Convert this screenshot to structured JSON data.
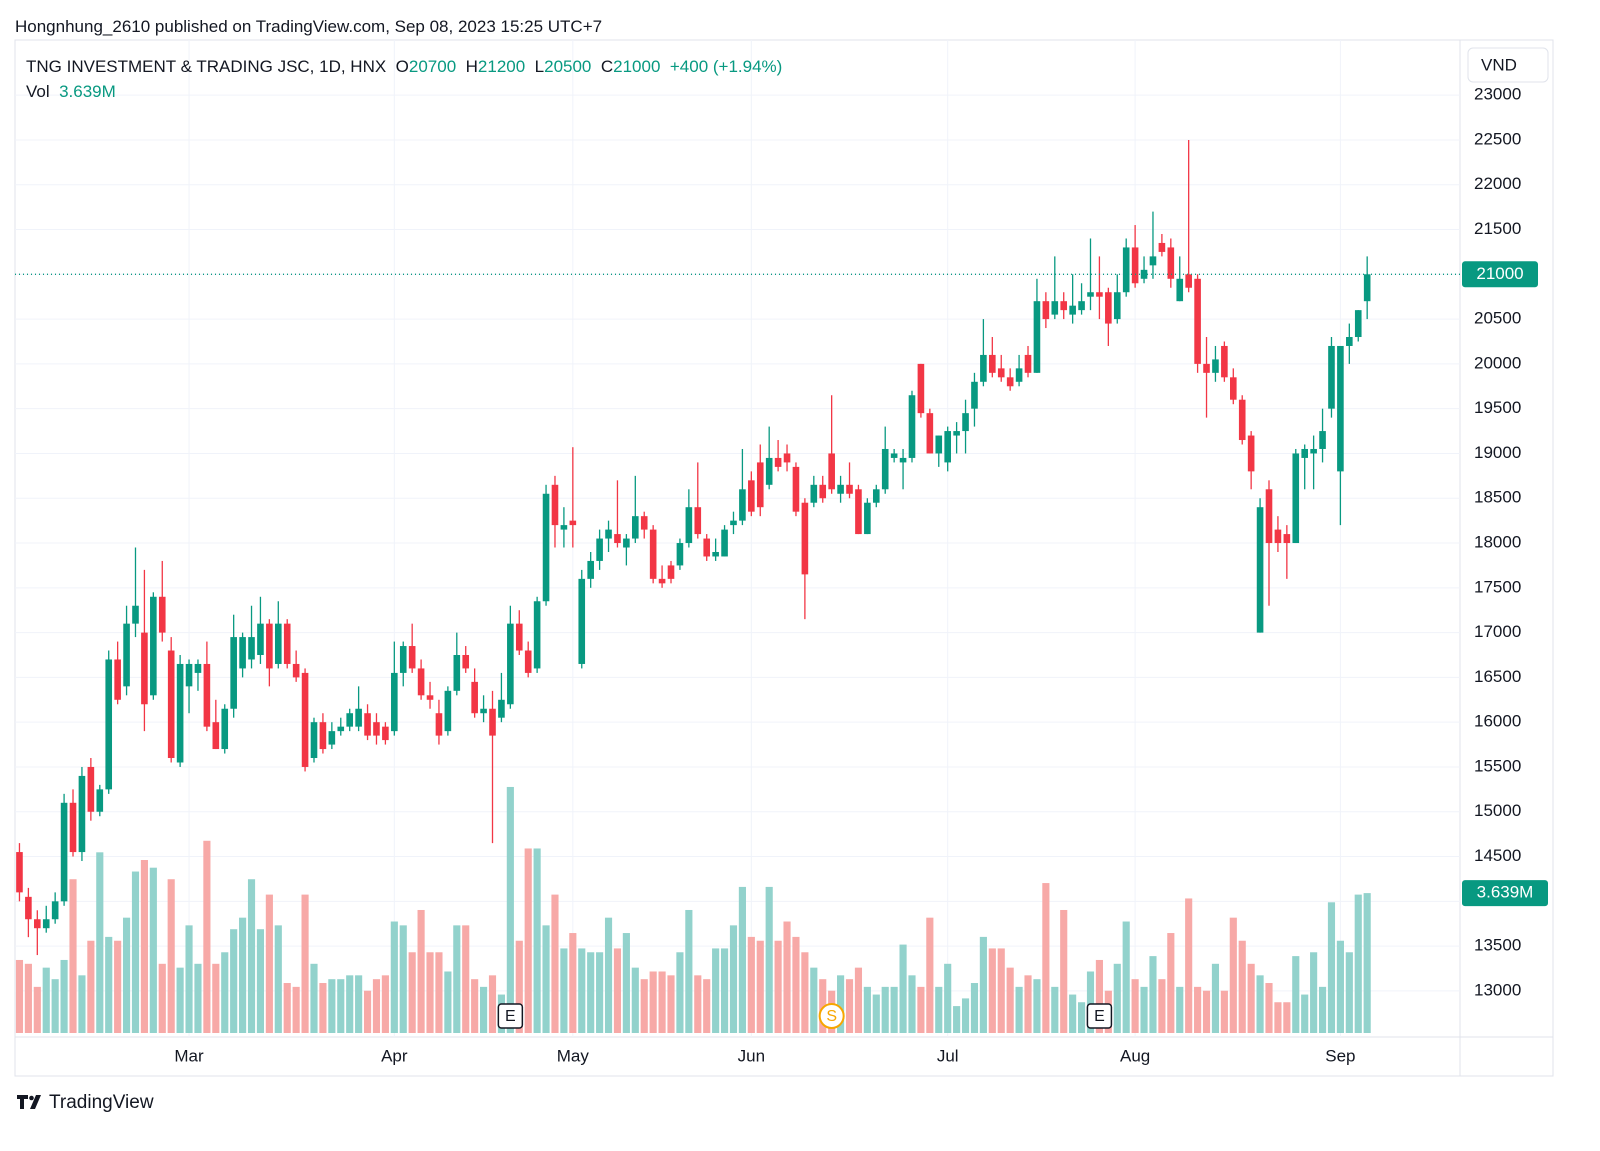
{
  "chart_data": {
    "type": "candlestick",
    "byline": "Hongnhung_2610 published on TradingView.com, Sep 08, 2023 15:25 UTC+7",
    "symbol": "TNG INVESTMENT & TRADING JSC, 1D, HNX",
    "ohlc_labels": [
      "O",
      "H",
      "L",
      "C"
    ],
    "ohlc_values": [
      20700,
      21200,
      20500,
      21000
    ],
    "change": "+400 (+1.94%)",
    "volume_label": "Vol",
    "volume_value_label": "3.639M",
    "currency": "VND",
    "brand": "TradingView",
    "up_color": "#089981",
    "down_color": "#f23645",
    "volume_up_color": "#92d2cc",
    "volume_down_color": "#f7a9a7",
    "grid": true,
    "xlim": [
      -0.5,
      161.4
    ],
    "ylim": [
      12530,
      23560
    ],
    "volume_ylim": [
      0,
      25.7
    ],
    "yticks": [
      13000,
      13500,
      14000,
      14500,
      15000,
      15500,
      16000,
      16500,
      17000,
      17500,
      18000,
      18500,
      19000,
      19500,
      20000,
      20500,
      21000,
      21500,
      22000,
      22500,
      23000
    ],
    "xticks": [
      {
        "value": 19,
        "label": "Mar"
      },
      {
        "value": 42,
        "label": "Apr"
      },
      {
        "value": 62,
        "label": "May"
      },
      {
        "value": 82,
        "label": "Jun"
      },
      {
        "value": 104,
        "label": "Jul"
      },
      {
        "value": 125,
        "label": "Aug"
      },
      {
        "value": 148,
        "label": "Sep"
      }
    ],
    "events": [
      {
        "label": "E",
        "x": 55
      },
      {
        "label": "S",
        "x": 91
      },
      {
        "label": "E",
        "x": 121
      }
    ],
    "ohlc": [
      [
        14550,
        14650,
        14000,
        14100
      ],
      [
        14050,
        14150,
        13600,
        13800
      ],
      [
        13800,
        13900,
        13400,
        13700
      ],
      [
        13700,
        13950,
        13650,
        13800
      ],
      [
        13800,
        14100,
        13750,
        14000
      ],
      [
        14000,
        15200,
        13950,
        15100
      ],
      [
        15100,
        15250,
        14500,
        14550
      ],
      [
        14550,
        15500,
        14450,
        15400
      ],
      [
        15500,
        15600,
        14900,
        15000
      ],
      [
        15000,
        15300,
        14950,
        15250
      ],
      [
        15250,
        16800,
        15200,
        16700
      ],
      [
        16700,
        16900,
        16200,
        16250
      ],
      [
        16400,
        17300,
        16300,
        17100
      ],
      [
        17100,
        17950,
        16950,
        17300
      ],
      [
        17000,
        17700,
        15900,
        16200
      ],
      [
        16300,
        17450,
        16250,
        17400
      ],
      [
        17400,
        17800,
        16900,
        17000
      ],
      [
        16800,
        16950,
        15550,
        15600
      ],
      [
        15550,
        16750,
        15500,
        16650
      ],
      [
        16400,
        16700,
        16100,
        16650
      ],
      [
        16550,
        16700,
        16350,
        16650
      ],
      [
        16650,
        16900,
        15900,
        15950
      ],
      [
        16000,
        16250,
        15700,
        15700
      ],
      [
        15700,
        16200,
        15650,
        16150
      ],
      [
        16150,
        17200,
        16050,
        16950
      ],
      [
        16600,
        17000,
        16500,
        16950
      ],
      [
        16700,
        17300,
        16600,
        16950
      ],
      [
        16750,
        17400,
        16650,
        17100
      ],
      [
        17100,
        17150,
        16400,
        16600
      ],
      [
        16650,
        17350,
        16600,
        17100
      ],
      [
        17100,
        17150,
        16600,
        16650
      ],
      [
        16650,
        16800,
        16450,
        16500
      ],
      [
        16550,
        16600,
        15450,
        15500
      ],
      [
        15600,
        16050,
        15550,
        16000
      ],
      [
        16000,
        16100,
        15650,
        15700
      ],
      [
        15750,
        16000,
        15700,
        15900
      ],
      [
        15900,
        16050,
        15850,
        15950
      ],
      [
        15950,
        16150,
        15900,
        16100
      ],
      [
        15950,
        16400,
        15900,
        16150
      ],
      [
        16100,
        16200,
        15800,
        15850
      ],
      [
        16000,
        16100,
        15750,
        15850
      ],
      [
        15950,
        16000,
        15750,
        15800
      ],
      [
        15900,
        16900,
        15850,
        16550
      ],
      [
        16550,
        16900,
        16400,
        16850
      ],
      [
        16850,
        17100,
        16550,
        16600
      ],
      [
        16600,
        16700,
        16250,
        16300
      ],
      [
        16300,
        16450,
        16150,
        16250
      ],
      [
        16100,
        16250,
        15750,
        15850
      ],
      [
        15900,
        16400,
        15850,
        16350
      ],
      [
        16350,
        17000,
        16300,
        16750
      ],
      [
        16750,
        16850,
        16550,
        16600
      ],
      [
        16450,
        16600,
        16050,
        16100
      ],
      [
        16100,
        16300,
        16000,
        16150
      ],
      [
        16150,
        16350,
        14650,
        15850
      ],
      [
        16050,
        16550,
        16000,
        16250
      ],
      [
        16200,
        17300,
        16150,
        17100
      ],
      [
        17100,
        17250,
        16750,
        16800
      ],
      [
        16800,
        16900,
        16500,
        16550
      ],
      [
        16600,
        17400,
        16550,
        17350
      ],
      [
        17350,
        18650,
        17300,
        18550
      ],
      [
        18650,
        18750,
        17950,
        18200
      ],
      [
        18150,
        18400,
        17950,
        18200
      ],
      [
        18250,
        19070,
        17950,
        18200
      ],
      [
        16650,
        17700,
        16600,
        17600
      ],
      [
        17600,
        17900,
        17500,
        17800
      ],
      [
        17800,
        18150,
        17700,
        18050
      ],
      [
        18050,
        18250,
        17900,
        18150
      ],
      [
        18100,
        18700,
        17950,
        18000
      ],
      [
        17950,
        18100,
        17750,
        18050
      ],
      [
        18050,
        18750,
        18000,
        18300
      ],
      [
        18300,
        18350,
        18050,
        18150
      ],
      [
        18150,
        18200,
        17550,
        17600
      ],
      [
        17600,
        17750,
        17500,
        17550
      ],
      [
        17750,
        17800,
        17550,
        17600
      ],
      [
        17750,
        18050,
        17700,
        18000
      ],
      [
        18000,
        18600,
        17950,
        18400
      ],
      [
        18400,
        18900,
        18050,
        18100
      ],
      [
        18050,
        18100,
        17800,
        17850
      ],
      [
        17850,
        18050,
        17800,
        17900
      ],
      [
        17850,
        18200,
        17850,
        18150
      ],
      [
        18200,
        18350,
        18100,
        18250
      ],
      [
        18250,
        19050,
        18200,
        18600
      ],
      [
        18700,
        18800,
        18300,
        18350
      ],
      [
        18900,
        19100,
        18300,
        18400
      ],
      [
        18650,
        19300,
        18600,
        18950
      ],
      [
        18950,
        19150,
        18800,
        18850
      ],
      [
        19000,
        19100,
        18800,
        18900
      ],
      [
        18850,
        18900,
        18300,
        18350
      ],
      [
        18450,
        18500,
        17150,
        17650
      ],
      [
        18450,
        18750,
        18400,
        18650
      ],
      [
        18650,
        18750,
        18450,
        18500
      ],
      [
        19000,
        19650,
        18550,
        18600
      ],
      [
        18550,
        18750,
        18450,
        18650
      ],
      [
        18650,
        18900,
        18500,
        18550
      ],
      [
        18600,
        18650,
        18100,
        18100
      ],
      [
        18100,
        18500,
        18100,
        18450
      ],
      [
        18450,
        18650,
        18400,
        18600
      ],
      [
        18600,
        19300,
        18550,
        19050
      ],
      [
        18950,
        19050,
        18900,
        19000
      ],
      [
        18900,
        19050,
        18600,
        18950
      ],
      [
        18950,
        19700,
        18900,
        19650
      ],
      [
        20000,
        20000,
        19400,
        19450
      ],
      [
        19450,
        19500,
        19000,
        19000
      ],
      [
        19000,
        19200,
        18850,
        19200
      ],
      [
        18900,
        19300,
        18800,
        19250
      ],
      [
        19200,
        19350,
        19000,
        19250
      ],
      [
        19250,
        19600,
        19000,
        19450
      ],
      [
        19500,
        19900,
        19300,
        19800
      ],
      [
        19800,
        20500,
        19750,
        20100
      ],
      [
        20100,
        20300,
        19850,
        19900
      ],
      [
        19950,
        20100,
        19800,
        19850
      ],
      [
        19850,
        19950,
        19700,
        19750
      ],
      [
        19800,
        20100,
        19750,
        19950
      ],
      [
        20100,
        20200,
        19850,
        19900
      ],
      [
        19900,
        20950,
        19900,
        20700
      ],
      [
        20700,
        20800,
        20400,
        20500
      ],
      [
        20550,
        21200,
        20500,
        20700
      ],
      [
        20700,
        20800,
        20500,
        20600
      ],
      [
        20550,
        21000,
        20450,
        20650
      ],
      [
        20600,
        20900,
        20550,
        20700
      ],
      [
        20750,
        21400,
        20600,
        20800
      ],
      [
        20800,
        21200,
        20500,
        20750
      ],
      [
        20800,
        20850,
        20200,
        20450
      ],
      [
        20500,
        21000,
        20450,
        20800
      ],
      [
        20800,
        21400,
        20750,
        21300
      ],
      [
        21300,
        21550,
        20850,
        20900
      ],
      [
        20950,
        21200,
        20900,
        21050
      ],
      [
        21100,
        21700,
        20950,
        21200
      ],
      [
        21350,
        21450,
        21200,
        21250
      ],
      [
        21300,
        21400,
        20850,
        20950
      ],
      [
        20700,
        21200,
        20700,
        20950
      ],
      [
        21000,
        22500,
        20800,
        20850
      ],
      [
        20950,
        21000,
        19900,
        20000
      ],
      [
        20000,
        20300,
        19400,
        19900
      ],
      [
        19900,
        20200,
        19800,
        20050
      ],
      [
        20200,
        20250,
        19800,
        19850
      ],
      [
        19850,
        19950,
        19550,
        19600
      ],
      [
        19600,
        19650,
        19100,
        19150
      ],
      [
        19200,
        19250,
        18600,
        18800
      ],
      [
        17000,
        18500,
        17000,
        18400
      ],
      [
        18600,
        18700,
        17300,
        18000
      ],
      [
        18150,
        18300,
        17900,
        18000
      ],
      [
        18100,
        18200,
        17600,
        18000
      ],
      [
        18000,
        19050,
        18000,
        19000
      ],
      [
        18950,
        19100,
        18600,
        19050
      ],
      [
        19000,
        19200,
        18600,
        19050
      ],
      [
        19050,
        19500,
        18900,
        19250
      ],
      [
        19500,
        20300,
        19400,
        20200
      ],
      [
        18800,
        20200,
        18200,
        20200
      ],
      [
        20200,
        20450,
        20000,
        20300
      ],
      [
        20300,
        20600,
        20250,
        20600
      ],
      [
        20700,
        21200,
        20500,
        21000
      ]
    ],
    "volume": [
      1.9,
      1.8,
      1.2,
      1.7,
      1.4,
      1.9,
      4.0,
      1.5,
      2.4,
      4.7,
      2.5,
      2.4,
      3.0,
      4.2,
      4.5,
      4.3,
      1.8,
      4.0,
      1.7,
      2.8,
      1.8,
      5.0,
      1.8,
      2.1,
      2.7,
      3.0,
      4.0,
      2.7,
      3.6,
      2.8,
      1.3,
      1.2,
      3.6,
      1.8,
      1.3,
      1.4,
      1.4,
      1.5,
      1.5,
      1.1,
      1.4,
      1.5,
      2.9,
      2.8,
      2.1,
      3.2,
      2.1,
      2.1,
      1.6,
      2.8,
      2.8,
      1.4,
      1.2,
      1.5,
      1.0,
      6.4,
      2.4,
      4.8,
      4.8,
      2.8,
      3.6,
      2.2,
      2.6,
      2.2,
      2.1,
      2.1,
      3.0,
      2.2,
      2.6,
      1.7,
      1.4,
      1.6,
      1.6,
      1.5,
      2.1,
      3.2,
      1.5,
      1.4,
      2.2,
      2.2,
      2.8,
      3.8,
      2.5,
      2.4,
      3.8,
      2.4,
      2.9,
      2.5,
      2.1,
      1.7,
      1.4,
      1.1,
      1.5,
      1.4,
      1.7,
      1.2,
      1.0,
      1.2,
      1.2,
      2.3,
      1.5,
      1.2,
      3.0,
      1.2,
      1.8,
      0.7,
      0.9,
      1.3,
      2.5,
      2.2,
      2.2,
      1.7,
      1.2,
      1.5,
      1.4,
      3.9,
      1.2,
      3.2,
      1.0,
      0.8,
      1.6,
      1.9,
      1.1,
      1.8,
      2.9,
      1.4,
      1.2,
      2.0,
      1.4,
      2.6,
      1.2,
      3.5,
      1.2,
      1.1,
      1.8,
      1.1,
      3.0,
      2.4,
      1.8,
      1.5,
      1.3,
      0.8,
      0.8,
      2.0,
      1.0,
      2.1,
      1.2,
      3.4,
      2.4,
      2.1,
      3.6,
      3.639
    ]
  }
}
